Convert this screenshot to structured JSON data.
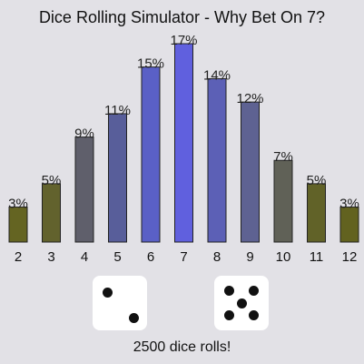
{
  "title": "Dice Rolling Simulator - Why Bet On 7?",
  "chart_data": {
    "type": "bar",
    "title": "Dice Rolling Simulator - Why Bet On 7?",
    "categories": [
      "2",
      "3",
      "4",
      "5",
      "6",
      "7",
      "8",
      "9",
      "10",
      "11",
      "12"
    ],
    "values": [
      3,
      5,
      9,
      11,
      15,
      17,
      14,
      12,
      7,
      5,
      3
    ],
    "value_labels": [
      "3%",
      "5%",
      "9%",
      "11%",
      "15%",
      "17%",
      "14%",
      "12%",
      "7%",
      "5%",
      "3%"
    ],
    "colors": [
      "#646422",
      "#62622d",
      "#5f5f6b",
      "#585e9a",
      "#5a60c6",
      "#6060de",
      "#5c60b6",
      "#5e6292",
      "#606157",
      "#616228",
      "#62621f"
    ],
    "ylim": [
      0,
      17
    ],
    "grid": false,
    "legend": "none"
  },
  "dice": [
    {
      "name": "die-left",
      "value": 2
    },
    {
      "name": "die-right",
      "value": 5
    }
  ],
  "rolls_label": "2500 dice rolls!"
}
